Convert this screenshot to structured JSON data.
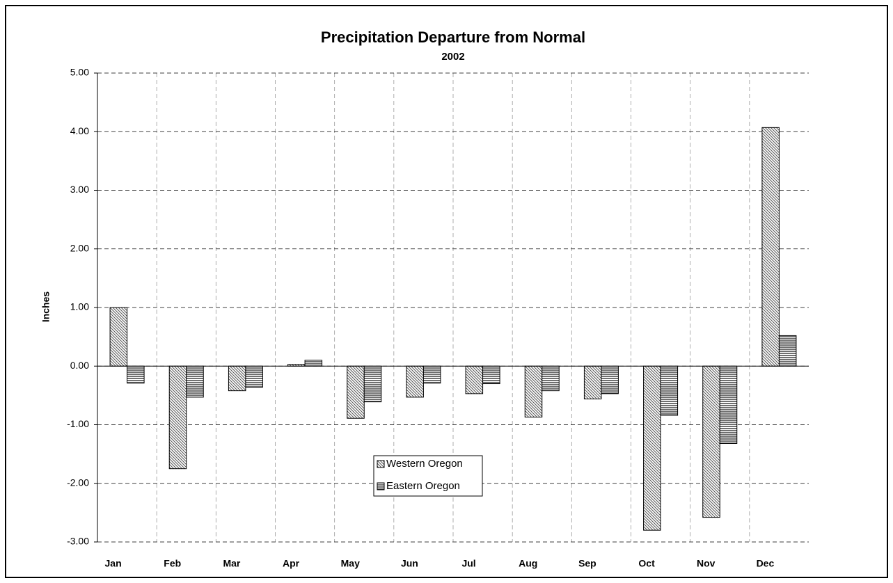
{
  "chart_data": {
    "type": "bar",
    "title": "Precipitation Departure from Normal",
    "subtitle": "2002",
    "y_label": "Inches",
    "categories": [
      "Jan",
      "Feb",
      "Mar",
      "Apr",
      "May",
      "Jun",
      "Jul",
      "Aug",
      "Sep",
      "Oct",
      "Nov",
      "Dec"
    ],
    "series": [
      {
        "name": "Western Oregon",
        "color": "#555555",
        "values": [
          1.0,
          -1.75,
          -0.42,
          0.03,
          -0.89,
          -0.53,
          -0.47,
          -0.87,
          -0.56,
          -2.8,
          -2.58,
          4.07
        ]
      },
      {
        "name": "Eastern Oregon",
        "color": "#333333",
        "values": [
          -0.29,
          -0.53,
          -0.36,
          0.1,
          -0.61,
          -0.29,
          -0.3,
          -0.42,
          -0.47,
          -0.84,
          -1.32,
          0.52
        ]
      }
    ],
    "ylim": [
      -3,
      5
    ],
    "yticks": [
      {
        "value": -3,
        "label": "-3.00"
      },
      {
        "value": -2,
        "label": "-2.00"
      },
      {
        "value": -1,
        "label": "-1.00"
      },
      {
        "value": 0,
        "label": "0.00"
      },
      {
        "value": 1,
        "label": "1.00"
      },
      {
        "value": 2,
        "label": "2.00"
      },
      {
        "value": 3,
        "label": "3.00"
      },
      {
        "value": 4,
        "label": "4.00"
      },
      {
        "value": 5,
        "label": "5.00"
      }
    ],
    "grid": true,
    "legend": "bottom-center"
  }
}
